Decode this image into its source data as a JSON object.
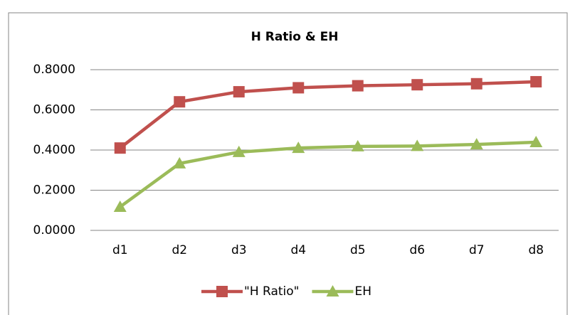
{
  "chart_data": {
    "type": "line",
    "title": "H Ratio & EH",
    "categories": [
      "d1",
      "d2",
      "d3",
      "d4",
      "d5",
      "d6",
      "d7",
      "d8"
    ],
    "series": [
      {
        "name": "\"H Ratio\"",
        "color": "#c0504d",
        "marker": "square",
        "values": [
          0.41,
          0.64,
          0.69,
          0.71,
          0.72,
          0.725,
          0.73,
          0.74
        ]
      },
      {
        "name": "EH",
        "color": "#9bbb59",
        "marker": "triangle",
        "values": [
          0.117,
          0.333,
          0.39,
          0.41,
          0.418,
          0.42,
          0.428,
          0.439
        ]
      }
    ],
    "ylim": [
      0,
      0.8
    ],
    "yticks": [
      {
        "value": 0,
        "label": "0.0000"
      },
      {
        "value": 0.2,
        "label": "0.2000"
      },
      {
        "value": 0.4,
        "label": "0.4000"
      },
      {
        "value": 0.6,
        "label": "0.6000"
      },
      {
        "value": 0.8,
        "label": "0.8000"
      }
    ],
    "grid": true,
    "legend": "bottom"
  }
}
